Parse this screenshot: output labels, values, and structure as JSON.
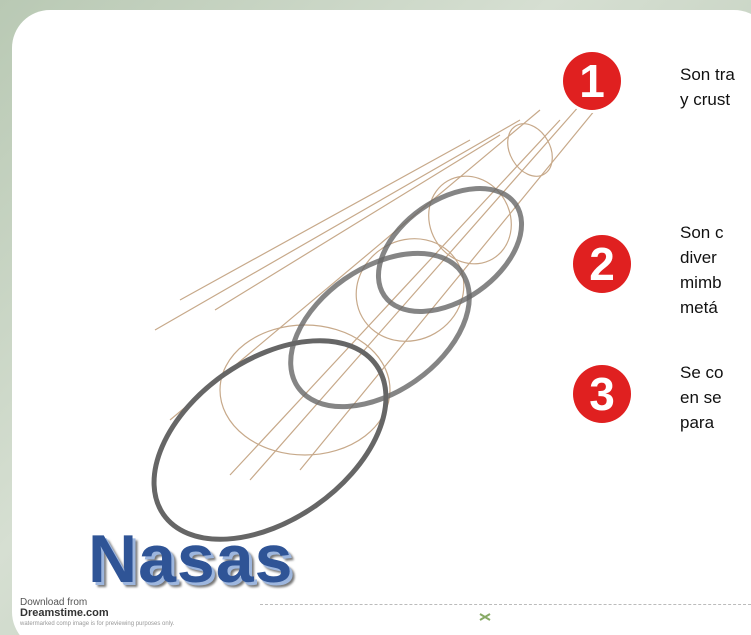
{
  "title": "Nasas",
  "items": [
    {
      "number": "1",
      "lines": [
        "Son tra",
        "y crust"
      ]
    },
    {
      "number": "2",
      "lines": [
        "Son c",
        "diver",
        "mimb",
        "metá"
      ]
    },
    {
      "number": "3",
      "lines": [
        "Se co",
        "en se",
        "para"
      ]
    }
  ],
  "watermark": {
    "line1": "Download from",
    "line2": "Dreamstime.com",
    "line3": "watermarked comp image is for previewing purposes only."
  }
}
